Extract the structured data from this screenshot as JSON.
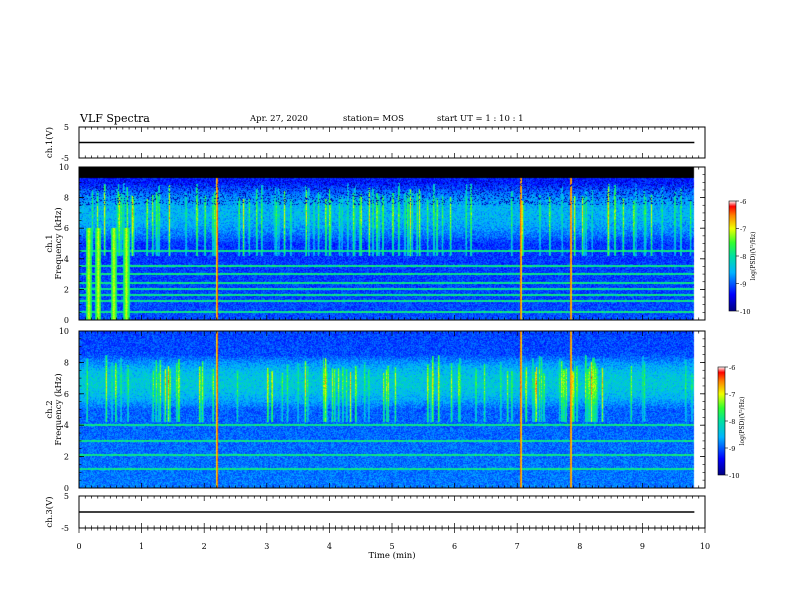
{
  "header": {
    "title": "VLF Spectra",
    "date": "Apr. 27, 2020",
    "station": "station= MOS",
    "start": "start  UT =   1 : 10 : 1"
  },
  "chart_data": [
    {
      "type": "line",
      "ylabel": "ch.1(V)",
      "xlim": [
        0,
        10
      ],
      "ylim": [
        -5,
        5
      ],
      "yticks": [
        "5",
        "-5"
      ],
      "series": [
        {
          "x": [
            0,
            9.83
          ],
          "values": [
            0,
            0
          ]
        }
      ]
    },
    {
      "type": "heatmap",
      "ylabel": "ch.1\nFrequency (kHz)",
      "xlim": [
        0,
        10
      ],
      "ylim": [
        0,
        10
      ],
      "yticks": [
        "0",
        "2",
        "4",
        "6",
        "8",
        "10"
      ],
      "data_xmax": 9.83,
      "upper_cutoff_khz": 9.3,
      "colorbar": {
        "label": "log(PSD)(V²/Hz)",
        "ticks": [
          "-6",
          "-7",
          "-8",
          "-9",
          "-10"
        ],
        "range": [
          -10,
          -6
        ]
      },
      "emission_band_khz": [
        5,
        9
      ],
      "strong_bursts_min": [
        2.2,
        7.05,
        7.85
      ],
      "low_freq_bursts_min": [
        0.15,
        0.3,
        0.55,
        0.75
      ],
      "line_frequencies_khz": [
        0.5,
        1.2,
        1.6,
        2.0,
        2.4,
        3.0,
        3.5,
        4.5
      ]
    },
    {
      "type": "heatmap",
      "ylabel": "ch.2\nFrequency (kHz)",
      "xlim": [
        0,
        10
      ],
      "ylim": [
        0,
        10
      ],
      "yticks": [
        "0",
        "2",
        "4",
        "6",
        "8",
        "10"
      ],
      "data_xmax": 9.83,
      "colorbar": {
        "label": "log(PSD)(V²/Hz)",
        "ticks": [
          "-6",
          "-7",
          "-8",
          "-9",
          "-10"
        ],
        "range": [
          -10,
          -6
        ]
      },
      "emission_band_khz": [
        5,
        8.5
      ],
      "strong_bursts_min": [
        2.2,
        7.05,
        7.85
      ],
      "line_frequencies_khz": [
        1.2,
        2.1,
        3.0,
        4.0
      ]
    },
    {
      "type": "line",
      "ylabel": "ch.3(V)",
      "xlabel": "Time (min)",
      "xlim": [
        0,
        10
      ],
      "ylim": [
        -5,
        5
      ],
      "yticks": [
        "5",
        "-5"
      ],
      "xticks": [
        "0",
        "1",
        "2",
        "3",
        "4",
        "5",
        "6",
        "7",
        "8",
        "9",
        "10"
      ],
      "series": [
        {
          "x": [
            0,
            9.83
          ],
          "values": [
            0,
            0
          ]
        }
      ]
    }
  ]
}
